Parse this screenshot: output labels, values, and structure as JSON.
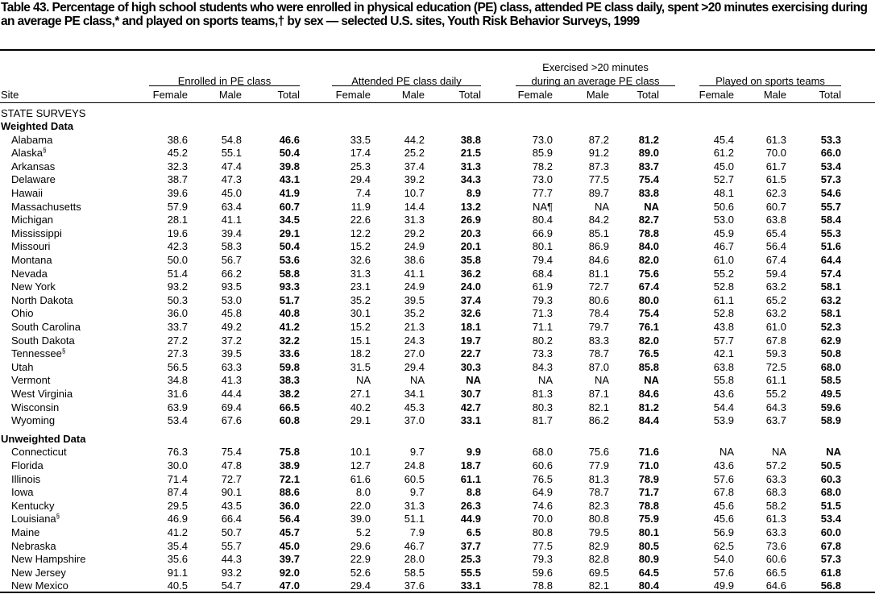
{
  "header": {
    "title": "Table 43. Percentage of high school students who were enrolled in physical education (PE) class, attended PE class daily, spent >20 minutes exercising during an average PE class,* and played on sports teams,† by sex — selected U.S. sites, Youth Risk Behavior Surveys, 1999"
  },
  "table": {
    "site_label": "Site",
    "groups": [
      [
        "Enrolled in PE class"
      ],
      [
        "Attended PE class daily"
      ],
      [
        "Exercised >20 minutes",
        "during an average PE class"
      ],
      [
        "Played on sports teams"
      ]
    ],
    "columns": [
      "Female",
      "Male",
      "Total"
    ],
    "survey_label": "STATE SURVEYS",
    "sections": [
      {
        "name": "Weighted Data",
        "rows": [
          {
            "site": "Alabama",
            "values": [
              "38.6",
              "54.8",
              "46.6",
              "33.5",
              "44.2",
              "38.8",
              "73.0",
              "87.2",
              "81.2",
              "45.4",
              "61.3",
              "53.3"
            ]
          },
          {
            "site": "Alaska",
            "mark": "§",
            "values": [
              "45.2",
              "55.1",
              "50.4",
              "17.4",
              "25.2",
              "21.5",
              "85.9",
              "91.2",
              "89.0",
              "61.2",
              "70.0",
              "66.0"
            ]
          },
          {
            "site": "Arkansas",
            "values": [
              "32.3",
              "47.4",
              "39.8",
              "25.3",
              "37.4",
              "31.3",
              "78.2",
              "87.3",
              "83.7",
              "45.0",
              "61.7",
              "53.4"
            ]
          },
          {
            "site": "Delaware",
            "values": [
              "38.7",
              "47.3",
              "43.1",
              "29.4",
              "39.2",
              "34.3",
              "73.0",
              "77.5",
              "75.4",
              "52.7",
              "61.5",
              "57.3"
            ]
          },
          {
            "site": "Hawaii",
            "values": [
              "39.6",
              "45.0",
              "41.9",
              "7.4",
              "10.7",
              "8.9",
              "77.7",
              "89.7",
              "83.8",
              "48.1",
              "62.3",
              "54.6"
            ]
          },
          {
            "site": "Massachusetts",
            "values": [
              "57.9",
              "63.4",
              "60.7",
              "11.9",
              "14.4",
              "13.2",
              "NA¶",
              "NA",
              "NA",
              "50.6",
              "60.7",
              "55.7"
            ]
          },
          {
            "site": "Michigan",
            "values": [
              "28.1",
              "41.1",
              "34.5",
              "22.6",
              "31.3",
              "26.9",
              "80.4",
              "84.2",
              "82.7",
              "53.0",
              "63.8",
              "58.4"
            ]
          },
          {
            "site": "Mississippi",
            "values": [
              "19.6",
              "39.4",
              "29.1",
              "12.2",
              "29.2",
              "20.3",
              "66.9",
              "85.1",
              "78.8",
              "45.9",
              "65.4",
              "55.3"
            ]
          },
          {
            "site": "Missouri",
            "values": [
              "42.3",
              "58.3",
              "50.4",
              "15.2",
              "24.9",
              "20.1",
              "80.1",
              "86.9",
              "84.0",
              "46.7",
              "56.4",
              "51.6"
            ]
          },
          {
            "site": "Montana",
            "values": [
              "50.0",
              "56.7",
              "53.6",
              "32.6",
              "38.6",
              "35.8",
              "79.4",
              "84.6",
              "82.0",
              "61.0",
              "67.4",
              "64.4"
            ]
          },
          {
            "site": "Nevada",
            "values": [
              "51.4",
              "66.2",
              "58.8",
              "31.3",
              "41.1",
              "36.2",
              "68.4",
              "81.1",
              "75.6",
              "55.2",
              "59.4",
              "57.4"
            ]
          },
          {
            "site": "New York",
            "values": [
              "93.2",
              "93.5",
              "93.3",
              "23.1",
              "24.9",
              "24.0",
              "61.9",
              "72.7",
              "67.4",
              "52.8",
              "63.2",
              "58.1"
            ]
          },
          {
            "site": "North Dakota",
            "values": [
              "50.3",
              "53.0",
              "51.7",
              "35.2",
              "39.5",
              "37.4",
              "79.3",
              "80.6",
              "80.0",
              "61.1",
              "65.2",
              "63.2"
            ]
          },
          {
            "site": "Ohio",
            "values": [
              "36.0",
              "45.8",
              "40.8",
              "30.1",
              "35.2",
              "32.6",
              "71.3",
              "78.4",
              "75.4",
              "52.8",
              "63.2",
              "58.1"
            ]
          },
          {
            "site": "South Carolina",
            "values": [
              "33.7",
              "49.2",
              "41.2",
              "15.2",
              "21.3",
              "18.1",
              "71.1",
              "79.7",
              "76.1",
              "43.8",
              "61.0",
              "52.3"
            ]
          },
          {
            "site": "South Dakota",
            "values": [
              "27.2",
              "37.2",
              "32.2",
              "15.1",
              "24.3",
              "19.7",
              "80.2",
              "83.3",
              "82.0",
              "57.7",
              "67.8",
              "62.9"
            ]
          },
          {
            "site": "Tennessee",
            "mark": "§",
            "values": [
              "27.3",
              "39.5",
              "33.6",
              "18.2",
              "27.0",
              "22.7",
              "73.3",
              "78.7",
              "76.5",
              "42.1",
              "59.3",
              "50.8"
            ]
          },
          {
            "site": "Utah",
            "values": [
              "56.5",
              "63.3",
              "59.8",
              "31.5",
              "29.4",
              "30.3",
              "84.3",
              "87.0",
              "85.8",
              "63.8",
              "72.5",
              "68.0"
            ]
          },
          {
            "site": "Vermont",
            "values": [
              "34.8",
              "41.3",
              "38.3",
              "NA",
              "NA",
              "NA",
              "NA",
              "NA",
              "NA",
              "55.8",
              "61.1",
              "58.5"
            ]
          },
          {
            "site": "West Virginia",
            "values": [
              "31.6",
              "44.4",
              "38.2",
              "27.1",
              "34.1",
              "30.7",
              "81.3",
              "87.1",
              "84.6",
              "43.6",
              "55.2",
              "49.5"
            ]
          },
          {
            "site": "Wisconsin",
            "values": [
              "63.9",
              "69.4",
              "66.5",
              "40.2",
              "45.3",
              "42.7",
              "80.3",
              "82.1",
              "81.2",
              "54.4",
              "64.3",
              "59.6"
            ]
          },
          {
            "site": "Wyoming",
            "values": [
              "53.4",
              "67.6",
              "60.8",
              "29.1",
              "37.0",
              "33.1",
              "81.7",
              "86.2",
              "84.4",
              "53.9",
              "63.7",
              "58.9"
            ]
          }
        ]
      },
      {
        "name": "Unweighted Data",
        "rows": [
          {
            "site": "Connecticut",
            "values": [
              "76.3",
              "75.4",
              "75.8",
              "10.1",
              "9.7",
              "9.9",
              "68.0",
              "75.6",
              "71.6",
              "NA",
              "NA",
              "NA"
            ]
          },
          {
            "site": "Florida",
            "values": [
              "30.0",
              "47.8",
              "38.9",
              "12.7",
              "24.8",
              "18.7",
              "60.6",
              "77.9",
              "71.0",
              "43.6",
              "57.2",
              "50.5"
            ]
          },
          {
            "site": "Illinois",
            "values": [
              "71.4",
              "72.7",
              "72.1",
              "61.6",
              "60.5",
              "61.1",
              "76.5",
              "81.3",
              "78.9",
              "57.6",
              "63.3",
              "60.3"
            ]
          },
          {
            "site": "Iowa",
            "values": [
              "87.4",
              "90.1",
              "88.6",
              "8.0",
              "9.7",
              "8.8",
              "64.9",
              "78.7",
              "71.7",
              "67.8",
              "68.3",
              "68.0"
            ]
          },
          {
            "site": "Kentucky",
            "values": [
              "29.5",
              "43.5",
              "36.0",
              "22.0",
              "31.3",
              "26.3",
              "74.6",
              "82.3",
              "78.8",
              "45.6",
              "58.2",
              "51.5"
            ]
          },
          {
            "site": "Louisiana",
            "mark": "§",
            "values": [
              "46.9",
              "66.4",
              "56.4",
              "39.0",
              "51.1",
              "44.9",
              "70.0",
              "80.8",
              "75.9",
              "45.6",
              "61.3",
              "53.4"
            ]
          },
          {
            "site": "Maine",
            "values": [
              "41.2",
              "50.7",
              "45.7",
              "5.2",
              "7.9",
              "6.5",
              "80.8",
              "79.5",
              "80.1",
              "56.9",
              "63.3",
              "60.0"
            ]
          },
          {
            "site": "Nebraska",
            "values": [
              "35.4",
              "55.7",
              "45.0",
              "29.6",
              "46.7",
              "37.7",
              "77.5",
              "82.9",
              "80.5",
              "62.5",
              "73.6",
              "67.8"
            ]
          },
          {
            "site": "New Hampshire",
            "values": [
              "35.6",
              "44.3",
              "39.7",
              "22.9",
              "28.0",
              "25.3",
              "79.3",
              "82.8",
              "80.9",
              "54.0",
              "60.6",
              "57.3"
            ]
          },
          {
            "site": "New Jersey",
            "values": [
              "91.1",
              "93.2",
              "92.0",
              "52.6",
              "58.5",
              "55.5",
              "59.6",
              "69.5",
              "64.5",
              "57.6",
              "66.5",
              "61.8"
            ]
          },
          {
            "site": "New Mexico",
            "values": [
              "40.5",
              "54.7",
              "47.0",
              "29.4",
              "37.6",
              "33.1",
              "78.8",
              "82.1",
              "80.4",
              "49.9",
              "64.6",
              "56.8"
            ]
          }
        ]
      }
    ]
  }
}
